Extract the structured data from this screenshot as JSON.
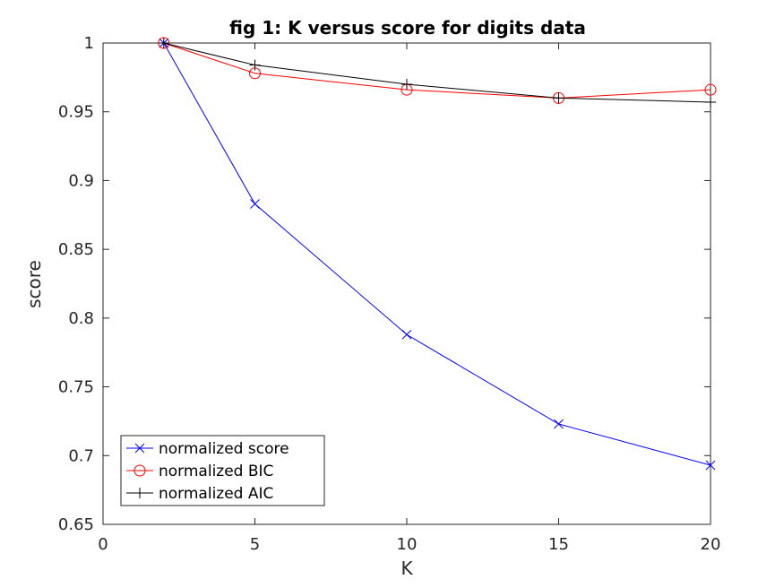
{
  "chart_data": {
    "type": "line",
    "title": "fig 1: K versus score for digits data",
    "xlabel": "K",
    "ylabel": "score",
    "xlim": [
      0,
      20
    ],
    "ylim": [
      0.65,
      1
    ],
    "xticks": [
      0,
      5,
      10,
      15,
      20
    ],
    "yticks": [
      0.65,
      0.7,
      0.75,
      0.8,
      0.85,
      0.9,
      0.95,
      1
    ],
    "x_tick_labels": [
      "0",
      "5",
      "10",
      "15",
      "20"
    ],
    "y_tick_labels": [
      "0.65",
      "0.7",
      "0.75",
      "0.8",
      "0.85",
      "0.9",
      "0.95",
      "1"
    ],
    "grid": false,
    "legend_position": "bottom-left",
    "x": [
      2,
      5,
      10,
      15,
      20
    ],
    "series": [
      {
        "name": "normalized score",
        "values": [
          1.0,
          0.883,
          0.788,
          0.723,
          0.693
        ],
        "color": "#0000ff",
        "marker": "x"
      },
      {
        "name": "normalized BIC",
        "values": [
          1.0,
          0.978,
          0.966,
          0.96,
          0.966
        ],
        "color": "#ff0000",
        "marker": "o"
      },
      {
        "name": "normalized AIC",
        "values": [
          1.0,
          0.984,
          0.97,
          0.96,
          0.957
        ],
        "color": "#000000",
        "marker": "+"
      }
    ]
  }
}
